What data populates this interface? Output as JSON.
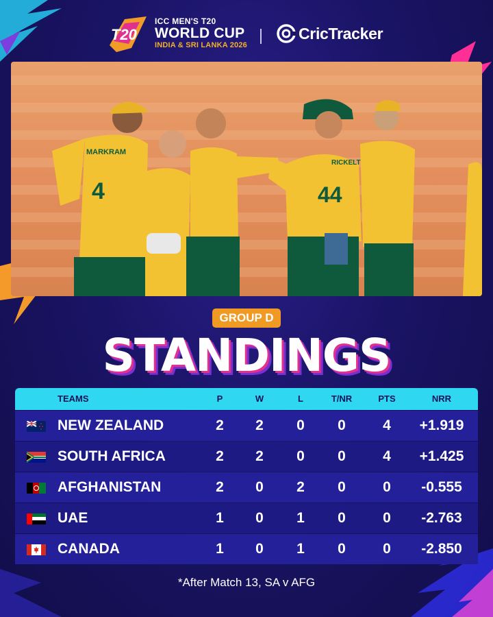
{
  "header": {
    "event_line1": "ICC MEN'S T20",
    "event_line2": "WORLD CUP",
    "event_line3": "INDIA & SRI LANKA 2026",
    "logo_mark": "T20",
    "brand": "CricTracker"
  },
  "photo": {
    "description_icon": "team-celebration-photo",
    "jersey_names": [
      "MARKRAM",
      "RICKELTON"
    ],
    "jersey_numbers": [
      "4",
      "44"
    ]
  },
  "group_label": "GROUP D",
  "title": "STANDINGS",
  "table": {
    "columns": [
      "TEAMS",
      "P",
      "W",
      "L",
      "T/NR",
      "PTS",
      "NRR"
    ],
    "rows": [
      {
        "team": "NEW ZEALAND",
        "flag": "nz-flag-icon",
        "p": "2",
        "w": "2",
        "l": "0",
        "tnr": "0",
        "pts": "4",
        "nrr": "+1.919"
      },
      {
        "team": "SOUTH AFRICA",
        "flag": "sa-flag-icon",
        "p": "2",
        "w": "2",
        "l": "0",
        "tnr": "0",
        "pts": "4",
        "nrr": "+1.425"
      },
      {
        "team": "AFGHANISTAN",
        "flag": "afg-flag-icon",
        "p": "2",
        "w": "0",
        "l": "2",
        "tnr": "0",
        "pts": "0",
        "nrr": "-0.555"
      },
      {
        "team": "UAE",
        "flag": "uae-flag-icon",
        "p": "1",
        "w": "0",
        "l": "1",
        "tnr": "0",
        "pts": "0",
        "nrr": "-2.763"
      },
      {
        "team": "CANADA",
        "flag": "canada-flag-icon",
        "p": "1",
        "w": "0",
        "l": "1",
        "tnr": "0",
        "pts": "0",
        "nrr": "-2.850"
      }
    ]
  },
  "footnote": "*After Match 13, SA v AFG",
  "colors": {
    "background": "#1a1466",
    "accent_orange": "#f09a24",
    "accent_cyan": "#2fd7f0",
    "accent_pink": "#e0318e",
    "row": "#23209a"
  }
}
